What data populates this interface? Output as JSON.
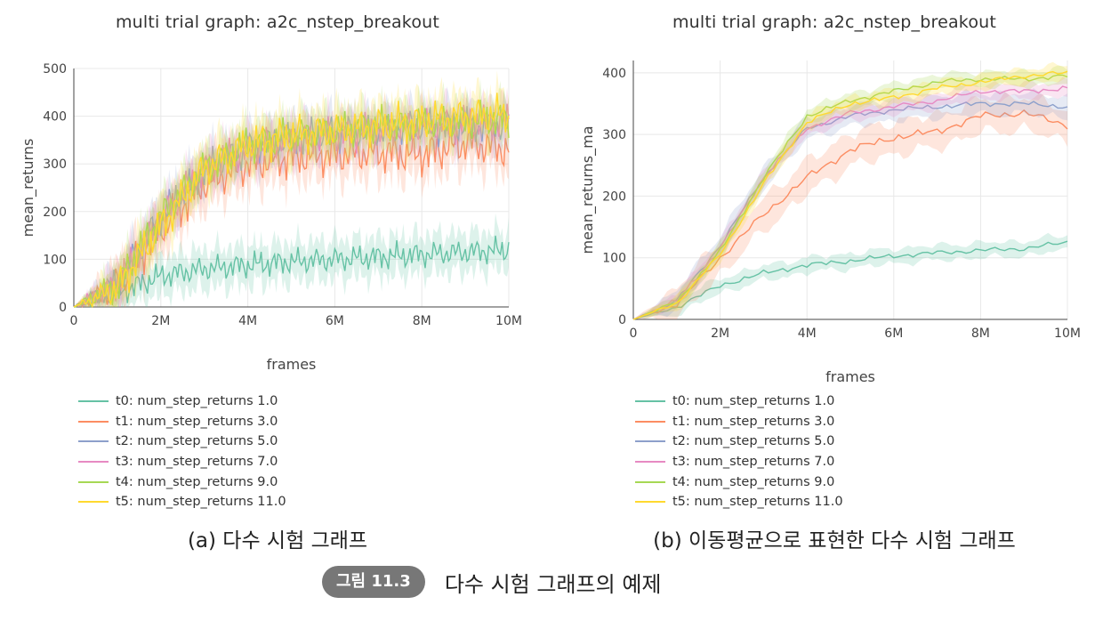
{
  "chart_data": [
    {
      "type": "line",
      "title": "multi trial graph: a2c_nstep_breakout",
      "xlabel": "frames",
      "ylabel": "mean_returns",
      "xlim": [
        0,
        10000000
      ],
      "ylim": [
        0,
        500
      ],
      "x_ticks": [
        "0",
        "2M",
        "4M",
        "6M",
        "8M",
        "10M"
      ],
      "y_ticks": [
        "0",
        "100",
        "200",
        "300",
        "400",
        "500"
      ],
      "grid": true,
      "legend_position": "bottom-left",
      "series": [
        {
          "name": "t0: num_step_returns 1.0",
          "color": "#66c2a5",
          "x": [
            0,
            1,
            2,
            3,
            4,
            5,
            6,
            7,
            8,
            9,
            10
          ],
          "y": [
            0,
            30,
            65,
            80,
            88,
            95,
            100,
            105,
            110,
            115,
            120
          ]
        },
        {
          "name": "t1: num_step_returns 3.0",
          "color": "#fc8d62",
          "x": [
            0,
            1,
            2,
            3,
            4,
            5,
            6,
            7,
            8,
            9,
            10
          ],
          "y": [
            0,
            45,
            165,
            260,
            300,
            315,
            320,
            325,
            320,
            345,
            330
          ]
        },
        {
          "name": "t2: num_step_returns 5.0",
          "color": "#8da0cb",
          "x": [
            0,
            1,
            2,
            3,
            4,
            5,
            6,
            7,
            8,
            9,
            10
          ],
          "y": [
            0,
            50,
            190,
            290,
            330,
            355,
            365,
            370,
            380,
            380,
            380
          ]
        },
        {
          "name": "t3: num_step_returns 7.0",
          "color": "#e78ac3",
          "x": [
            0,
            1,
            2,
            3,
            4,
            5,
            6,
            7,
            8,
            9,
            10
          ],
          "y": [
            0,
            48,
            185,
            290,
            330,
            350,
            360,
            370,
            380,
            385,
            390
          ]
        },
        {
          "name": "t4: num_step_returns 9.0",
          "color": "#a6d854",
          "x": [
            0,
            1,
            2,
            3,
            4,
            5,
            6,
            7,
            8,
            9,
            10
          ],
          "y": [
            0,
            45,
            190,
            290,
            340,
            360,
            370,
            380,
            385,
            390,
            395
          ]
        },
        {
          "name": "t5: num_step_returns 11.0",
          "color": "#ffd92f",
          "x": [
            0,
            1,
            2,
            3,
            4,
            5,
            6,
            7,
            8,
            9,
            10
          ],
          "y": [
            0,
            40,
            170,
            290,
            340,
            360,
            370,
            380,
            390,
            400,
            405
          ]
        }
      ]
    },
    {
      "type": "line",
      "title": "multi trial graph: a2c_nstep_breakout",
      "xlabel": "frames",
      "ylabel": "mean_returns_ma",
      "xlim": [
        0,
        10000000
      ],
      "ylim": [
        0,
        420
      ],
      "x_ticks": [
        "0",
        "2M",
        "4M",
        "6M",
        "8M",
        "10M"
      ],
      "y_ticks": [
        "0",
        "100",
        "200",
        "300",
        "400"
      ],
      "grid": true,
      "legend_position": "bottom-left",
      "series": [
        {
          "name": "t0: num_step_returns 1.0",
          "color": "#66c2a5",
          "x": [
            0,
            1,
            2,
            3,
            4,
            5,
            6,
            7,
            8,
            9,
            10
          ],
          "y": [
            0,
            20,
            55,
            75,
            88,
            95,
            103,
            108,
            112,
            115,
            125
          ]
        },
        {
          "name": "t1: num_step_returns 3.0",
          "color": "#fc8d62",
          "x": [
            0,
            1,
            2,
            3,
            4,
            5,
            6,
            7,
            8,
            9,
            10
          ],
          "y": [
            0,
            25,
            100,
            170,
            230,
            275,
            295,
            305,
            330,
            335,
            315
          ]
        },
        {
          "name": "t2: num_step_returns 5.0",
          "color": "#8da0cb",
          "x": [
            0,
            1,
            2,
            3,
            4,
            5,
            6,
            7,
            8,
            9,
            10
          ],
          "y": [
            0,
            30,
            120,
            230,
            310,
            330,
            340,
            345,
            350,
            350,
            345
          ]
        },
        {
          "name": "t3: num_step_returns 7.0",
          "color": "#e78ac3",
          "x": [
            0,
            1,
            2,
            3,
            4,
            5,
            6,
            7,
            8,
            9,
            10
          ],
          "y": [
            0,
            30,
            115,
            230,
            310,
            335,
            345,
            355,
            370,
            370,
            375
          ]
        },
        {
          "name": "t4: num_step_returns 9.0",
          "color": "#a6d854",
          "x": [
            0,
            1,
            2,
            3,
            4,
            5,
            6,
            7,
            8,
            9,
            10
          ],
          "y": [
            0,
            28,
            110,
            230,
            330,
            355,
            370,
            385,
            390,
            390,
            395
          ]
        },
        {
          "name": "t5: num_step_returns 11.0",
          "color": "#ffd92f",
          "x": [
            0,
            1,
            2,
            3,
            4,
            5,
            6,
            7,
            8,
            9,
            10
          ],
          "y": [
            0,
            26,
            105,
            220,
            320,
            350,
            360,
            375,
            385,
            395,
            400
          ]
        }
      ]
    }
  ],
  "captions": {
    "a": "(a) 다수 시험 그래프",
    "b": "(b) 이동평균으로 표현한 다수 시험 그래프"
  },
  "figure": {
    "badge": "그림 11.3",
    "text": "다수 시험 그래프의 예제"
  }
}
